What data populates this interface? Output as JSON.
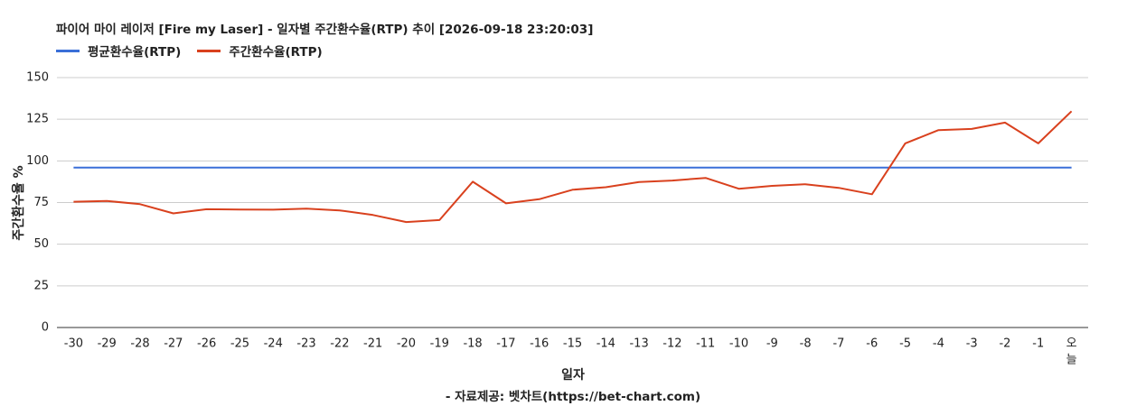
{
  "colors": {
    "average": "#3a6fd8",
    "weekly": "#d9411e",
    "grid": "#cccccc",
    "axis": "#333333"
  },
  "chart_data": {
    "type": "line",
    "title": "파이어 마이 레이저 [Fire my Laser] - 일자별 주간환수율(RTP) 추이 [2026-09-18 23:20:03]",
    "xlabel": "일자",
    "ylabel": "주간환수율 %",
    "credit": "- 자료제공: 벳차트(https://bet-chart.com)",
    "ylim": [
      0,
      150
    ],
    "yticks": [
      "0",
      "25",
      "50",
      "75",
      "100",
      "125",
      "150"
    ],
    "grid": true,
    "legend_position": "top-left",
    "categories": [
      "-30",
      "-29",
      "-28",
      "-27",
      "-26",
      "-25",
      "-24",
      "-23",
      "-22",
      "-21",
      "-20",
      "-19",
      "-18",
      "-17",
      "-16",
      "-15",
      "-14",
      "-13",
      "-12",
      "-11",
      "-10",
      "-9",
      "-8",
      "-7",
      "-6",
      "-5",
      "-4",
      "-3",
      "-2",
      "-1",
      "오늘"
    ],
    "series": [
      {
        "name": "평균환수율(RTP)",
        "color": "#3a6fd8",
        "values": [
          96,
          96,
          96,
          96,
          96,
          96,
          96,
          96,
          96,
          96,
          96,
          96,
          96,
          96,
          96,
          96,
          96,
          96,
          96,
          96,
          96,
          96,
          96,
          96,
          96,
          96,
          96,
          96,
          96,
          96,
          96
        ]
      },
      {
        "name": "주간환수율(RTP)",
        "color": "#d9411e",
        "values": [
          75.5,
          76,
          74,
          68.5,
          71,
          70.8,
          70.7,
          71.3,
          70.3,
          67.5,
          63.3,
          64.5,
          87.5,
          74.5,
          77,
          82.7,
          84.2,
          87.3,
          88.2,
          89.8,
          83.3,
          85,
          86,
          83.8,
          80,
          110.5,
          118.5,
          119.2,
          123,
          110.5,
          129.8
        ]
      }
    ]
  }
}
